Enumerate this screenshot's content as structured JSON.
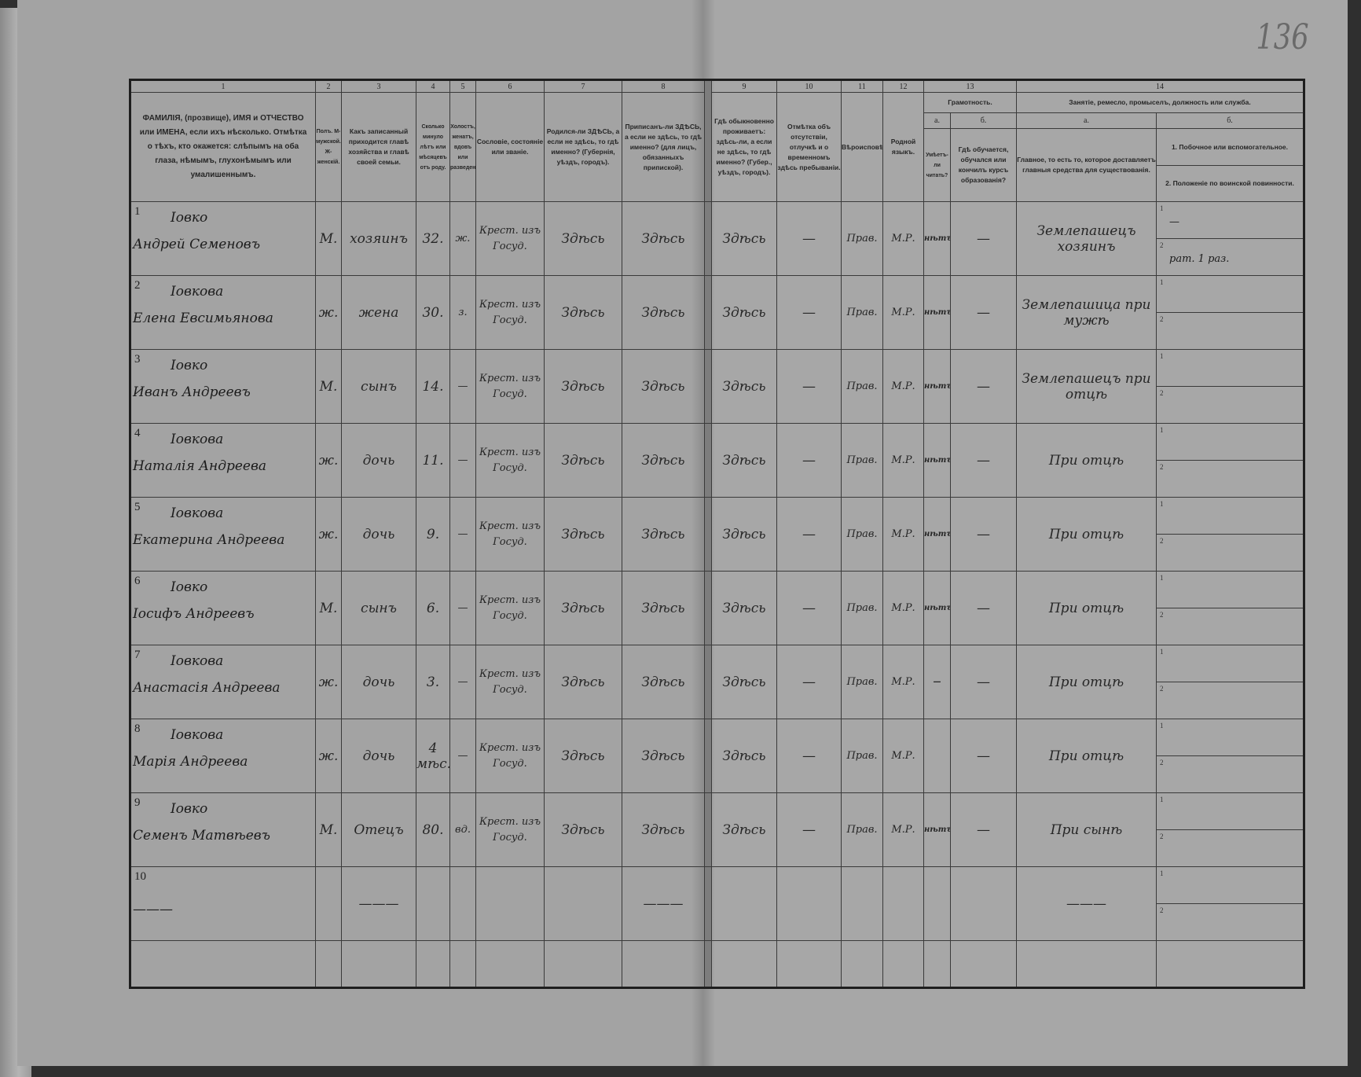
{
  "page_number": "136",
  "header": {
    "col_numbers": [
      "1",
      "2",
      "3",
      "4",
      "5",
      "6",
      "7",
      "8",
      "9",
      "10",
      "11",
      "12",
      "13",
      "14"
    ],
    "col1": "ФАМИЛІЯ, (прозвище), ИМЯ и ОТЧЕСТВО или ИМЕНА, если ихъ нѣсколько. Отмѣтка о тѣхъ, кто окажется: слѣпымъ на оба глаза, нѣмымъ, глухонѣмымъ или умалишеннымъ.",
    "col2": "Полъ. М-мужской. Ж-женскій.",
    "col3": "Какъ записанный приходится главѣ хозяйства и главѣ своей семьи.",
    "col4": "Сколько минуло лѣтъ или мѣсяцевъ отъ роду.",
    "col5": "Холостъ, женатъ, вдовъ или разведенъ.",
    "col6": "Сословіе, состояніе или званіе.",
    "col7": "Родился-ли ЗДѢСЬ, а если не здѣсь, то гдѣ именно? (Губернія, уѣздъ, городъ).",
    "col8": "Приписанъ-ли ЗДѢСЬ, а если не здѣсь, то гдѣ именно? (для лицъ, обязанныхъ припиской).",
    "col9": "Гдѣ обыкновенно проживаетъ: здѣсь-ли, а если не здѣсь, то гдѣ именно? (Губер., уѣздъ, городъ).",
    "col10": "Отмѣтка объ отсутствіи, отлучкѣ и о временномъ здѣсь пребываніи.",
    "col11": "Вѣроисповѣданіе.",
    "col12": "Родной языкъ.",
    "col13": "Грамотность.",
    "col13a_letter": "а.",
    "col13b_letter": "б.",
    "col13a": "Умѣетъ-ли читать?",
    "col13b": "Гдѣ обучается, обучался или кончилъ курсъ образованія?",
    "col14": "Занятіе, ремесло, промыселъ, должность или служба.",
    "col14a_letter": "а.",
    "col14b_letter": "б.",
    "col14a": "Главное, то есть то, которое доставляетъ главныя средства для существованія.",
    "col14b1": "1. Побочное или вспомогательное.",
    "col14b2": "2. Положеніе по воинской повинности."
  },
  "rows": [
    {
      "num": "1",
      "surname": "Іовко",
      "given": "Андрей Семеновъ",
      "sex": "М.",
      "relation": "хозяинъ",
      "age": "32.",
      "marital": "ж.",
      "estate": "Крест. изъ Госуд.",
      "born": "Здѣсь",
      "registered": "Здѣсь",
      "resides": "Здѣсь",
      "absence": "—",
      "religion": "Прав.",
      "language": "М.Р.",
      "reads": "нѣтъ",
      "school": "—",
      "occupation": "Землепашецъ хозяинъ",
      "occ_b1": "—",
      "occ_b2": "рат. 1 раз."
    },
    {
      "num": "2",
      "surname": "Іовкова",
      "given": "Елена Евсимьянова",
      "sex": "ж.",
      "relation": "жена",
      "age": "30.",
      "marital": "з.",
      "estate": "Крест. изъ Госуд.",
      "born": "Здѣсь",
      "registered": "Здѣсь",
      "resides": "Здѣсь",
      "absence": "—",
      "religion": "Прав.",
      "language": "М.Р.",
      "reads": "нѣтъ",
      "school": "—",
      "occupation": "Землепашица при мужѣ",
      "occ_b1": "",
      "occ_b2": ""
    },
    {
      "num": "3",
      "surname": "Іовко",
      "given": "Иванъ Андреевъ",
      "sex": "М.",
      "relation": "сынъ",
      "age": "14.",
      "marital": "—",
      "estate": "Крест. изъ Госуд.",
      "born": "Здѣсь",
      "registered": "Здѣсь",
      "resides": "Здѣсь",
      "absence": "—",
      "religion": "Прав.",
      "language": "М.Р.",
      "reads": "нѣтъ",
      "school": "—",
      "occupation": "Землепашецъ при отцѣ",
      "occ_b1": "",
      "occ_b2": ""
    },
    {
      "num": "4",
      "surname": "Іовкова",
      "given": "Наталія Андреева",
      "sex": "ж.",
      "relation": "дочь",
      "age": "11.",
      "marital": "—",
      "estate": "Крест. изъ Госуд.",
      "born": "Здѣсь",
      "registered": "Здѣсь",
      "resides": "Здѣсь",
      "absence": "—",
      "religion": "Прав.",
      "language": "М.Р.",
      "reads": "нѣтъ",
      "school": "—",
      "occupation": "При отцѣ",
      "occ_b1": "",
      "occ_b2": ""
    },
    {
      "num": "5",
      "surname": "Іовкова",
      "given": "Екатерина Андреева",
      "sex": "ж.",
      "relation": "дочь",
      "age": "9.",
      "marital": "—",
      "estate": "Крест. изъ Госуд.",
      "born": "Здѣсь",
      "registered": "Здѣсь",
      "resides": "Здѣсь",
      "absence": "—",
      "religion": "Прав.",
      "language": "М.Р.",
      "reads": "нѣтъ",
      "school": "—",
      "occupation": "При отцѣ",
      "occ_b1": "",
      "occ_b2": ""
    },
    {
      "num": "6",
      "surname": "Іовко",
      "given": "Іосифъ Андреевъ",
      "sex": "М.",
      "relation": "сынъ",
      "age": "6.",
      "marital": "—",
      "estate": "Крест. изъ Госуд.",
      "born": "Здѣсь",
      "registered": "Здѣсь",
      "resides": "Здѣсь",
      "absence": "—",
      "religion": "Прав.",
      "language": "М.Р.",
      "reads": "нѣтъ",
      "school": "—",
      "occupation": "При отцѣ",
      "occ_b1": "",
      "occ_b2": ""
    },
    {
      "num": "7",
      "surname": "Іовкова",
      "given": "Анастасія Андреева",
      "sex": "ж.",
      "relation": "дочь",
      "age": "3.",
      "marital": "—",
      "estate": "Крест. изъ Госуд.",
      "born": "Здѣсь",
      "registered": "Здѣсь",
      "resides": "Здѣсь",
      "absence": "—",
      "religion": "Прав.",
      "language": "М.Р.",
      "reads": "—",
      "school": "—",
      "occupation": "При отцѣ",
      "occ_b1": "",
      "occ_b2": ""
    },
    {
      "num": "8",
      "surname": "Іовкова",
      "given": "Марія Андреева",
      "sex": "ж.",
      "relation": "дочь",
      "age": "4 мѣс.",
      "marital": "—",
      "estate": "Крест. изъ Госуд.",
      "born": "Здѣсь",
      "registered": "Здѣсь",
      "resides": "Здѣсь",
      "absence": "—",
      "religion": "Прав.",
      "language": "М.Р.",
      "reads": "",
      "school": "—",
      "occupation": "При отцѣ",
      "occ_b1": "",
      "occ_b2": ""
    },
    {
      "num": "9",
      "surname": "Іовко",
      "given": "Семенъ Матвѣевъ",
      "sex": "М.",
      "relation": "Отецъ",
      "age": "80.",
      "marital": "вд.",
      "estate": "Крест. изъ Госуд.",
      "born": "Здѣсь",
      "registered": "Здѣсь",
      "resides": "Здѣсь",
      "absence": "—",
      "religion": "Прав.",
      "language": "М.Р.",
      "reads": "нѣтъ",
      "school": "—",
      "occupation": "При сынѣ",
      "occ_b1": "",
      "occ_b2": ""
    },
    {
      "num": "10",
      "surname": "",
      "given": "———",
      "sex": "",
      "relation": "———",
      "age": "",
      "marital": "",
      "estate": "",
      "born": "",
      "registered": "———",
      "resides": "",
      "absence": "",
      "religion": "",
      "language": "",
      "reads": "",
      "school": "",
      "occupation": "———",
      "occ_b1": "",
      "occ_b2": ""
    }
  ]
}
